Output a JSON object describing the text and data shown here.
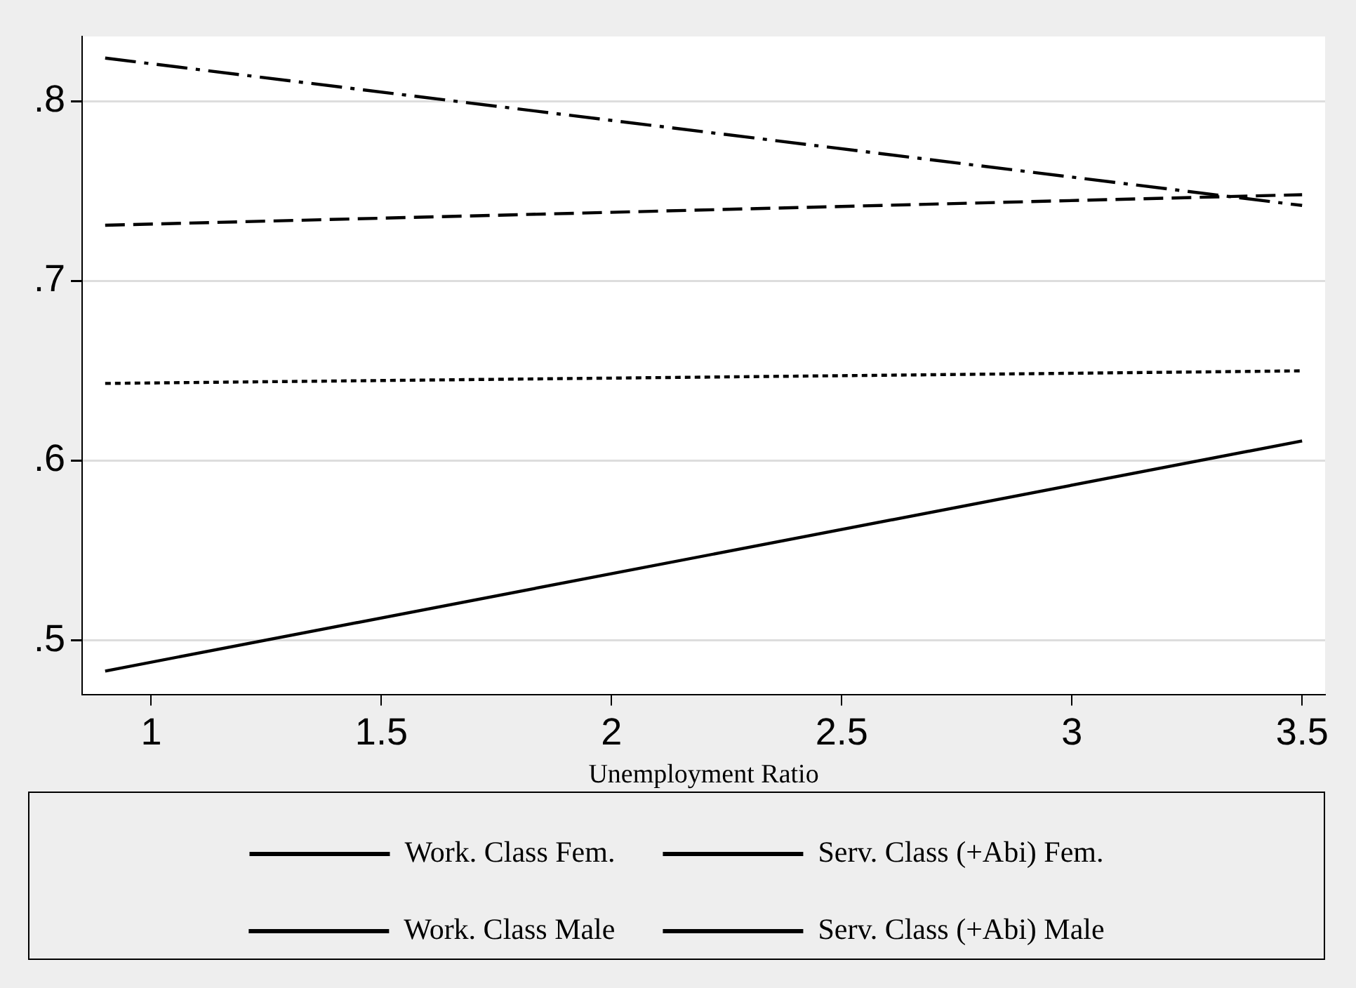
{
  "chart_data": {
    "type": "line",
    "xlabel": "Unemployment Ratio",
    "xlim": [
      0.85,
      3.55
    ],
    "xticks": [
      1,
      1.5,
      2,
      2.5,
      3,
      3.5
    ],
    "ylim": [
      0.47,
      0.836
    ],
    "yticks": [
      {
        "value": 0.5,
        "label": ".5"
      },
      {
        "value": 0.6,
        "label": ".6"
      },
      {
        "value": 0.7,
        "label": ".7"
      },
      {
        "value": 0.8,
        "label": ".8"
      }
    ],
    "x": [
      0.9,
      3.5
    ],
    "grid": "y",
    "legend": "bottom",
    "marker": "none",
    "series": [
      {
        "name": "Work. Class Fem.",
        "color": "#000000",
        "line_style": "solid",
        "values": [
          0.483,
          0.611
        ]
      },
      {
        "name": "Serv. Class (+Abi) Fem.",
        "color": "#000000",
        "line_style": "dashed",
        "values": [
          0.731,
          0.748
        ]
      },
      {
        "name": "Work. Class Male",
        "color": "#000000",
        "line_style": "dotted",
        "values": [
          0.643,
          0.65
        ]
      },
      {
        "name": "Serv. Class (+Abi) Male",
        "color": "#000000",
        "line_style": "dashdot",
        "values": [
          0.824,
          0.742
        ]
      }
    ]
  }
}
